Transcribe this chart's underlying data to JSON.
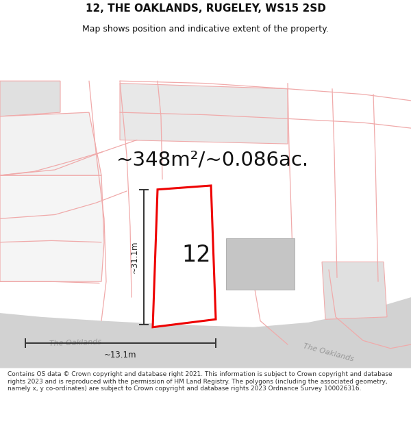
{
  "title": "12, THE OAKLANDS, RUGELEY, WS15 2SD",
  "subtitle": "Map shows position and indicative extent of the property.",
  "area_text": "~348m²/~0.086ac.",
  "property_number": "12",
  "dim_vertical": "~31.1m",
  "dim_horizontal": "~13.1m",
  "road_label1": "The Oaklands",
  "road_label2": "he Oaklands",
  "footer": "Contains OS data © Crown copyright and database right 2021. This information is subject to Crown copyright and database rights 2023 and is reproduced with the permission of HM Land Registry. The polygons (including the associated geometry, namely x, y co-ordinates) are subject to Crown copyright and database rights 2023 Ordnance Survey 100026316.",
  "bg_color": "#ffffff",
  "plot_edge": "#ee0000",
  "neighbor_edge": "#f0aaaa",
  "dim_color": "#333333",
  "text_color": "#111111",
  "road_fill": "#d8d8d8",
  "road_text": "#aaaaaa",
  "building_fill": "#c8c8c8",
  "building_edge": "#b0b0b0",
  "block_fill": "#ebebeb",
  "title_fontsize": 11,
  "subtitle_fontsize": 9,
  "area_fontsize": 21,
  "number_fontsize": 24,
  "footer_fontsize": 6.5
}
